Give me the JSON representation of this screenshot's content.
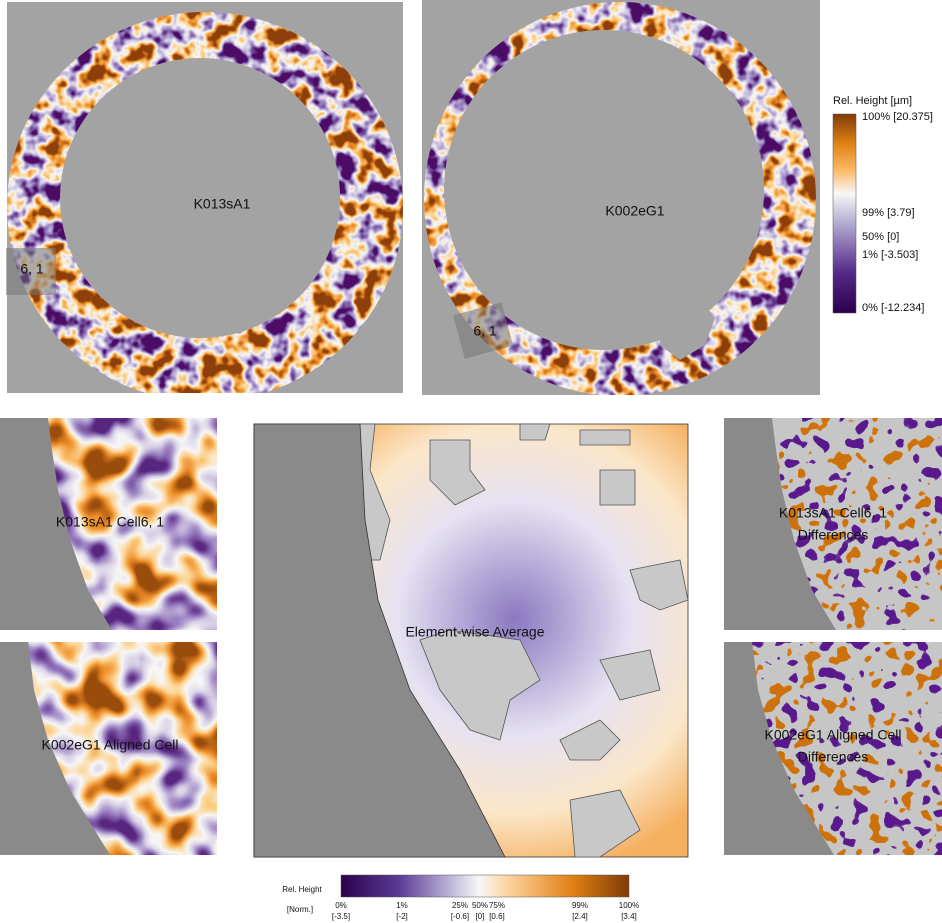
{
  "rings": {
    "left": {
      "label": "K013sA1",
      "cell": "6, 1"
    },
    "right": {
      "label": "K002eG1",
      "cell": "6, 1"
    }
  },
  "colorbar": {
    "title": "Rel. Height [µm]",
    "labels": [
      "100% [20.375]",
      "99% [3.79]",
      "50% [0]",
      "1% [-3.503]",
      "0% [-12.234]"
    ]
  },
  "cells": {
    "source": "K013sA1 Cell6, 1",
    "aligned": "K002eG1 Aligned Cell",
    "average": "Element-wise Average",
    "source_diff": [
      "K013sA1 Cell6, 1",
      "Differences"
    ],
    "aligned_diff": [
      "K002eG1 Aligned Cell",
      "Differences"
    ]
  },
  "norm_colorbar": {
    "title": "Rel. Height",
    "subtitle": "[Norm.]",
    "percents": [
      "0%",
      "1%",
      "25%",
      "50%",
      "75%",
      "99%",
      "100%"
    ],
    "values": [
      "[-3.5]",
      "[-2]",
      "[-0.6]",
      "[0]",
      "[0.6]",
      "[2.4]",
      "[3.4]"
    ]
  }
}
